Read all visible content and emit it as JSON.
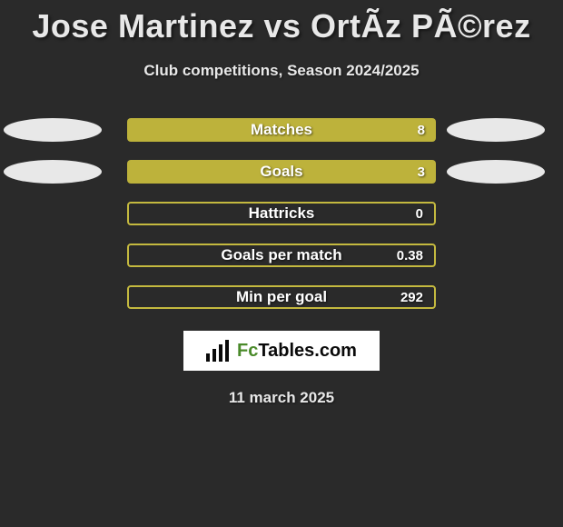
{
  "title": "Jose Martinez vs OrtÃ­z PÃ©rez",
  "subtitle": "Club competitions, Season 2024/2025",
  "colors": {
    "background": "#2a2a2a",
    "bar_fill": "#bdb23b",
    "bar_outline": "#c4b93f",
    "pill_fill": "#e8e8e8",
    "text": "#e8e8e8",
    "bar_text": "#ffffff"
  },
  "stats": [
    {
      "label": "Matches",
      "value": "8",
      "left_pill": true,
      "right_pill": true,
      "filled": true
    },
    {
      "label": "Goals",
      "value": "3",
      "left_pill": true,
      "right_pill": true,
      "filled": true
    },
    {
      "label": "Hattricks",
      "value": "0",
      "left_pill": false,
      "right_pill": false,
      "filled": false
    },
    {
      "label": "Goals per match",
      "value": "0.38",
      "left_pill": false,
      "right_pill": false,
      "filled": false
    },
    {
      "label": "Min per goal",
      "value": "292",
      "left_pill": false,
      "right_pill": false,
      "filled": false
    }
  ],
  "logo": {
    "brand_fc": "Fc",
    "brand_rest": "Tables.com"
  },
  "footer_date": "11 march 2025"
}
